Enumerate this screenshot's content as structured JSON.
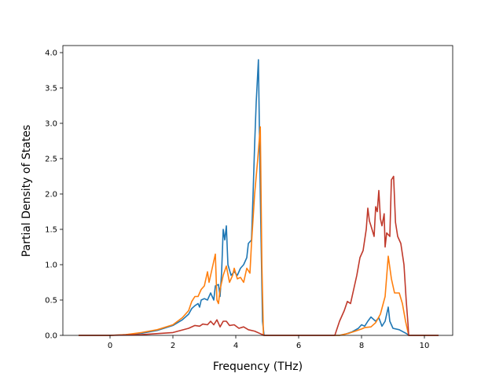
{
  "chart_data": {
    "type": "line",
    "title": "",
    "xlabel": "Frequency (THz)",
    "ylabel": "Partial Density of States",
    "xlim": [
      -1.5,
      10.9
    ],
    "ylim": [
      0,
      4.1
    ],
    "xticks": [
      0,
      2,
      4,
      6,
      8,
      10
    ],
    "yticks": [
      0.0,
      0.5,
      1.0,
      1.5,
      2.0,
      2.5,
      3.0,
      3.5,
      4.0
    ],
    "grid": false,
    "legend": "none",
    "series": [
      {
        "color": "#1f77b4",
        "points": [
          [
            -1.0,
            0
          ],
          [
            0.0,
            0
          ],
          [
            0.5,
            0.01
          ],
          [
            1.0,
            0.03
          ],
          [
            1.5,
            0.07
          ],
          [
            2.0,
            0.14
          ],
          [
            2.3,
            0.22
          ],
          [
            2.5,
            0.3
          ],
          [
            2.6,
            0.38
          ],
          [
            2.7,
            0.42
          ],
          [
            2.8,
            0.45
          ],
          [
            2.85,
            0.4
          ],
          [
            2.9,
            0.5
          ],
          [
            3.0,
            0.52
          ],
          [
            3.1,
            0.5
          ],
          [
            3.2,
            0.6
          ],
          [
            3.3,
            0.5
          ],
          [
            3.35,
            0.7
          ],
          [
            3.45,
            0.72
          ],
          [
            3.5,
            0.55
          ],
          [
            3.55,
            0.9
          ],
          [
            3.6,
            1.5
          ],
          [
            3.65,
            1.35
          ],
          [
            3.7,
            1.55
          ],
          [
            3.75,
            1.0
          ],
          [
            3.85,
            0.85
          ],
          [
            3.95,
            0.9
          ],
          [
            4.05,
            0.85
          ],
          [
            4.15,
            0.95
          ],
          [
            4.25,
            1.0
          ],
          [
            4.35,
            1.1
          ],
          [
            4.4,
            1.3
          ],
          [
            4.5,
            1.35
          ],
          [
            4.55,
            2.0
          ],
          [
            4.6,
            2.7
          ],
          [
            4.65,
            3.3
          ],
          [
            4.72,
            3.9
          ],
          [
            4.78,
            2.0
          ],
          [
            4.85,
            0.2
          ],
          [
            4.9,
            0
          ],
          [
            7.3,
            0
          ],
          [
            7.5,
            0.02
          ],
          [
            7.7,
            0.05
          ],
          [
            7.9,
            0.1
          ],
          [
            8.0,
            0.15
          ],
          [
            8.1,
            0.13
          ],
          [
            8.2,
            0.2
          ],
          [
            8.3,
            0.26
          ],
          [
            8.45,
            0.2
          ],
          [
            8.55,
            0.25
          ],
          [
            8.65,
            0.13
          ],
          [
            8.75,
            0.2
          ],
          [
            8.85,
            0.4
          ],
          [
            8.9,
            0.2
          ],
          [
            9.0,
            0.1
          ],
          [
            9.2,
            0.08
          ],
          [
            9.45,
            0.02
          ],
          [
            9.5,
            0
          ],
          [
            10.45,
            0
          ]
        ]
      },
      {
        "color": "#ff7f0e",
        "points": [
          [
            -1.0,
            0
          ],
          [
            0.0,
            0
          ],
          [
            0.5,
            0.01
          ],
          [
            1.0,
            0.04
          ],
          [
            1.5,
            0.08
          ],
          [
            2.0,
            0.15
          ],
          [
            2.3,
            0.25
          ],
          [
            2.5,
            0.35
          ],
          [
            2.6,
            0.48
          ],
          [
            2.7,
            0.55
          ],
          [
            2.8,
            0.55
          ],
          [
            2.9,
            0.65
          ],
          [
            3.0,
            0.7
          ],
          [
            3.1,
            0.9
          ],
          [
            3.15,
            0.75
          ],
          [
            3.25,
            0.95
          ],
          [
            3.35,
            1.15
          ],
          [
            3.4,
            0.5
          ],
          [
            3.45,
            0.45
          ],
          [
            3.5,
            0.65
          ],
          [
            3.6,
            0.85
          ],
          [
            3.7,
            0.98
          ],
          [
            3.8,
            0.75
          ],
          [
            3.9,
            0.85
          ],
          [
            3.95,
            0.95
          ],
          [
            4.05,
            0.8
          ],
          [
            4.15,
            0.82
          ],
          [
            4.25,
            0.75
          ],
          [
            4.35,
            0.95
          ],
          [
            4.45,
            0.88
          ],
          [
            4.5,
            1.3
          ],
          [
            4.6,
            2.0
          ],
          [
            4.7,
            2.5
          ],
          [
            4.78,
            2.95
          ],
          [
            4.83,
            1.0
          ],
          [
            4.88,
            0
          ],
          [
            7.3,
            0
          ],
          [
            7.6,
            0.03
          ],
          [
            7.8,
            0.06
          ],
          [
            8.0,
            0.09
          ],
          [
            8.1,
            0.11
          ],
          [
            8.3,
            0.12
          ],
          [
            8.45,
            0.18
          ],
          [
            8.6,
            0.3
          ],
          [
            8.75,
            0.55
          ],
          [
            8.85,
            1.12
          ],
          [
            8.95,
            0.8
          ],
          [
            9.05,
            0.6
          ],
          [
            9.2,
            0.6
          ],
          [
            9.3,
            0.45
          ],
          [
            9.4,
            0.2
          ],
          [
            9.5,
            0
          ],
          [
            10.45,
            0
          ]
        ]
      },
      {
        "color": "#c0392b",
        "points": [
          [
            -1.0,
            0
          ],
          [
            0.0,
            0
          ],
          [
            1.0,
            0.01
          ],
          [
            2.0,
            0.04
          ],
          [
            2.5,
            0.1
          ],
          [
            2.7,
            0.14
          ],
          [
            2.85,
            0.13
          ],
          [
            2.95,
            0.16
          ],
          [
            3.1,
            0.15
          ],
          [
            3.2,
            0.2
          ],
          [
            3.3,
            0.15
          ],
          [
            3.4,
            0.22
          ],
          [
            3.5,
            0.12
          ],
          [
            3.6,
            0.2
          ],
          [
            3.7,
            0.2
          ],
          [
            3.8,
            0.14
          ],
          [
            3.95,
            0.15
          ],
          [
            4.1,
            0.1
          ],
          [
            4.25,
            0.12
          ],
          [
            4.4,
            0.08
          ],
          [
            4.6,
            0.06
          ],
          [
            4.8,
            0.02
          ],
          [
            4.9,
            0
          ],
          [
            7.15,
            0
          ],
          [
            7.3,
            0.2
          ],
          [
            7.45,
            0.35
          ],
          [
            7.55,
            0.48
          ],
          [
            7.65,
            0.45
          ],
          [
            7.75,
            0.65
          ],
          [
            7.85,
            0.85
          ],
          [
            7.95,
            1.1
          ],
          [
            8.05,
            1.2
          ],
          [
            8.15,
            1.5
          ],
          [
            8.2,
            1.8
          ],
          [
            8.25,
            1.62
          ],
          [
            8.3,
            1.55
          ],
          [
            8.4,
            1.4
          ],
          [
            8.45,
            1.82
          ],
          [
            8.5,
            1.75
          ],
          [
            8.55,
            2.05
          ],
          [
            8.6,
            1.65
          ],
          [
            8.65,
            1.55
          ],
          [
            8.72,
            1.72
          ],
          [
            8.75,
            1.25
          ],
          [
            8.8,
            1.45
          ],
          [
            8.9,
            1.4
          ],
          [
            8.95,
            2.2
          ],
          [
            9.02,
            2.25
          ],
          [
            9.08,
            1.6
          ],
          [
            9.15,
            1.4
          ],
          [
            9.25,
            1.3
          ],
          [
            9.35,
            1.0
          ],
          [
            9.42,
            0.5
          ],
          [
            9.48,
            0.15
          ],
          [
            9.5,
            0
          ],
          [
            10.45,
            0
          ]
        ]
      }
    ]
  }
}
